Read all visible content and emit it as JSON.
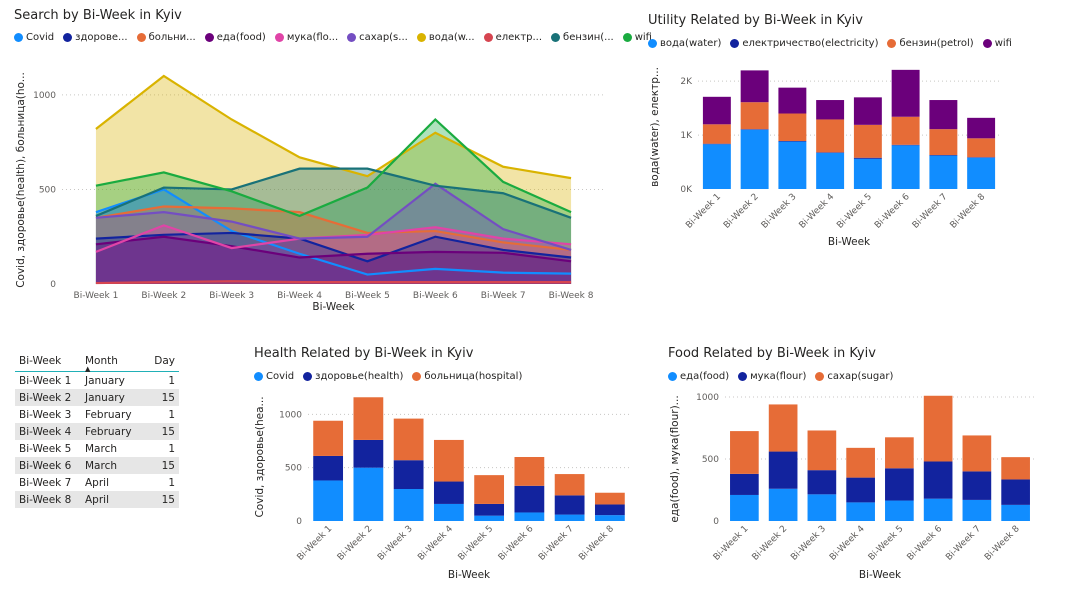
{
  "table": {
    "headers": [
      "Bi-Week",
      "Month",
      "Day"
    ],
    "rows": [
      [
        "Bi-Week 1",
        "January",
        "1"
      ],
      [
        "Bi-Week 2",
        "January",
        "15"
      ],
      [
        "Bi-Week 3",
        "February",
        "1"
      ],
      [
        "Bi-Week 4",
        "February",
        "15"
      ],
      [
        "Bi-Week 5",
        "March",
        "1"
      ],
      [
        "Bi-Week 6",
        "March",
        "15"
      ],
      [
        "Bi-Week 7",
        "April",
        "1"
      ],
      [
        "Bi-Week 8",
        "April",
        "15"
      ]
    ]
  },
  "chart_data": [
    {
      "id": "search",
      "type": "area",
      "title": "Search by Bi-Week in Kyiv",
      "xlabel": "Bi-Week",
      "ylabel": "Covid, здоровье(health), больница(ho...",
      "ylim": [
        0,
        1100
      ],
      "yticks": [
        0,
        500,
        1000
      ],
      "ytick_labels": [
        "0",
        "500",
        "1000"
      ],
      "grid": true,
      "legend_position": "top-left",
      "categories": [
        "Bi-Week 1",
        "Bi-Week 2",
        "Bi-Week 3",
        "Bi-Week 4",
        "Bi-Week 5",
        "Bi-Week 6",
        "Bi-Week 7",
        "Bi-Week 8"
      ],
      "series": [
        {
          "name": "Covid",
          "legend_label": "Covid",
          "color": "#118dff",
          "values": [
            380,
            500,
            280,
            160,
            50,
            80,
            60,
            55
          ]
        },
        {
          "name": "здоровье(health)",
          "legend_label": "здорове...",
          "color": "#12239e",
          "values": [
            240,
            260,
            270,
            240,
            120,
            250,
            180,
            140
          ]
        },
        {
          "name": "больница(hospital)",
          "legend_label": "больни...",
          "color": "#e66c37",
          "values": [
            350,
            410,
            400,
            380,
            270,
            280,
            220,
            180
          ]
        },
        {
          "name": "еда(food)",
          "legend_label": "еда(food)",
          "color": "#6b007b",
          "values": [
            210,
            250,
            200,
            140,
            160,
            170,
            165,
            120
          ]
        },
        {
          "name": "мука(flour)",
          "legend_label": "мука(flo...",
          "color": "#e044a7",
          "values": [
            170,
            310,
            190,
            240,
            260,
            300,
            240,
            210
          ]
        },
        {
          "name": "сахар(sugar)",
          "legend_label": "сахар(s...",
          "color": "#744ec2",
          "values": [
            350,
            380,
            330,
            240,
            250,
            530,
            290,
            180
          ]
        },
        {
          "name": "вода(water)",
          "legend_label": "вода(w...",
          "color": "#d9b300",
          "values": [
            820,
            1100,
            870,
            670,
            570,
            800,
            620,
            560
          ]
        },
        {
          "name": "електричество(electricity)",
          "legend_label": "електр...",
          "color": "#d64550",
          "values": [
            5,
            10,
            15,
            10,
            10,
            10,
            10,
            10
          ]
        },
        {
          "name": "бензин(petrol)",
          "legend_label": "бензин(...",
          "color": "#197278",
          "values": [
            360,
            510,
            500,
            610,
            610,
            520,
            480,
            350
          ]
        },
        {
          "name": "wifi",
          "legend_label": "wifi",
          "color": "#1aab40",
          "values": [
            520,
            590,
            490,
            360,
            510,
            870,
            540,
            380
          ]
        }
      ]
    },
    {
      "id": "utility",
      "type": "bar",
      "stacked": true,
      "title": "Utility Related by Bi-Week in Kyiv",
      "xlabel": "Bi-Week",
      "ylabel": "вода(water), електр...",
      "ylim": [
        0,
        2300
      ],
      "yticks": [
        0,
        1000,
        2000
      ],
      "ytick_labels": [
        "0K",
        "1K",
        "2K"
      ],
      "grid": true,
      "legend_position": "top-left",
      "categories": [
        "Bi-Week 1",
        "Bi-Week 2",
        "Bi-Week 3",
        "Bi-Week 4",
        "Bi-Week 5",
        "Bi-Week 6",
        "Bi-Week 7",
        "Bi-Week 8"
      ],
      "series": [
        {
          "name": "вода(water)",
          "color": "#118dff",
          "values": [
            830,
            1100,
            880,
            670,
            560,
            810,
            620,
            580
          ]
        },
        {
          "name": "електричество(electricity)",
          "color": "#12239e",
          "values": [
            10,
            10,
            10,
            10,
            20,
            10,
            10,
            10
          ]
        },
        {
          "name": "бензин(petrol)",
          "color": "#e66c37",
          "values": [
            360,
            500,
            510,
            610,
            610,
            520,
            480,
            350
          ]
        },
        {
          "name": "wifi",
          "color": "#6b007b",
          "values": [
            510,
            590,
            480,
            360,
            510,
            870,
            540,
            380
          ]
        }
      ]
    },
    {
      "id": "health",
      "type": "bar",
      "stacked": true,
      "title": "Health Related by Bi-Week in Kyiv",
      "xlabel": "Bi-Week",
      "ylabel": "Covid, здоровье(hea...",
      "ylim": [
        0,
        1200
      ],
      "yticks": [
        0,
        500,
        1000
      ],
      "ytick_labels": [
        "0",
        "500",
        "1000"
      ],
      "grid": true,
      "legend_position": "top-left",
      "categories": [
        "Bi-Week 1",
        "Bi-Week 2",
        "Bi-Week 3",
        "Bi-Week 4",
        "Bi-Week 5",
        "Bi-Week 6",
        "Bi-Week 7",
        "Bi-Week 8"
      ],
      "series": [
        {
          "name": "Covid",
          "color": "#118dff",
          "values": [
            380,
            500,
            300,
            160,
            50,
            80,
            60,
            55
          ]
        },
        {
          "name": "здоровье(health)",
          "color": "#12239e",
          "values": [
            230,
            260,
            270,
            210,
            110,
            250,
            180,
            100
          ]
        },
        {
          "name": "больница(hospital)",
          "color": "#e66c37",
          "values": [
            330,
            400,
            390,
            390,
            270,
            270,
            200,
            110
          ]
        }
      ]
    },
    {
      "id": "food",
      "type": "bar",
      "stacked": true,
      "title": "Food Related by Bi-Week in Kyiv",
      "xlabel": "Bi-Week",
      "ylabel": "еда(food), мука(flour)...",
      "ylim": [
        0,
        1000
      ],
      "yticks": [
        0,
        500,
        1000
      ],
      "ytick_labels": [
        "0",
        "500",
        "1000"
      ],
      "grid": true,
      "legend_position": "top-left",
      "categories": [
        "Bi-Week 1",
        "Bi-Week 2",
        "Bi-Week 3",
        "Bi-Week 4",
        "Bi-Week 5",
        "Bi-Week 6",
        "Bi-Week 7",
        "Bi-Week 8"
      ],
      "series": [
        {
          "name": "еда(food)",
          "color": "#118dff",
          "values": [
            210,
            260,
            215,
            150,
            165,
            180,
            170,
            130
          ]
        },
        {
          "name": "мука(flour)",
          "color": "#12239e",
          "values": [
            170,
            300,
            195,
            200,
            260,
            300,
            230,
            205
          ]
        },
        {
          "name": "сахар(sugar)",
          "color": "#e66c37",
          "values": [
            345,
            380,
            320,
            240,
            250,
            530,
            290,
            180
          ]
        }
      ]
    }
  ]
}
